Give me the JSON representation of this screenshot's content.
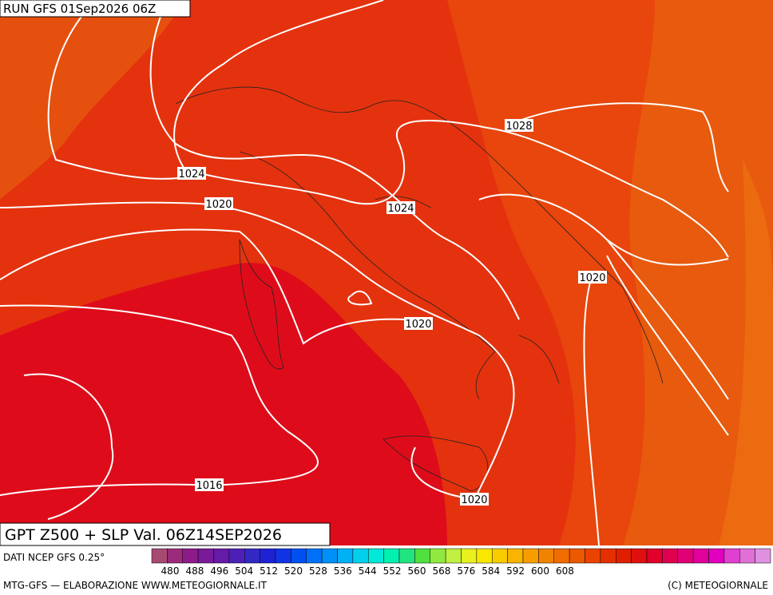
{
  "header": {
    "run": "RUN GFS 01Sep2026 06Z"
  },
  "map": {
    "title": "GPT Z500 + SLP Val. 06Z14SEP2026",
    "isobar_labels": [
      "1028",
      "1024",
      "1024",
      "1020",
      "1020",
      "1020",
      "1020",
      "1016",
      "1020"
    ]
  },
  "colorbar": {
    "source": "DATI NCEP GFS 0.25°",
    "ticks": [
      "480",
      "488",
      "496",
      "504",
      "512",
      "520",
      "528",
      "536",
      "544",
      "552",
      "560",
      "568",
      "576",
      "584",
      "592",
      "600",
      "608"
    ],
    "colors": [
      "#a64a72",
      "#9c2a7a",
      "#8c1a88",
      "#7a1a98",
      "#661aa8",
      "#4c20b6",
      "#3428c4",
      "#1e22d4",
      "#1034e4",
      "#0050f0",
      "#0070f8",
      "#0090f8",
      "#00b0f4",
      "#00d0ec",
      "#00e8d8",
      "#00f0b0",
      "#20e480",
      "#50e040",
      "#90e840",
      "#c0f040",
      "#e8f020",
      "#f8e800",
      "#f8cc00",
      "#f8b400",
      "#f89c00",
      "#f08400",
      "#f06c00",
      "#ec5800",
      "#e84400",
      "#e43000",
      "#e01e00",
      "#e01010",
      "#e0002a",
      "#e00050",
      "#e00076",
      "#e0009a",
      "#e000be",
      "#e040d0",
      "#e070d8",
      "#e090e0"
    ]
  },
  "footer": {
    "credit": "MTG-GFS — ELABORAZIONE WWW.METEOGIORNALE.IT",
    "copyright": "(C) METEOGIORNALE"
  }
}
